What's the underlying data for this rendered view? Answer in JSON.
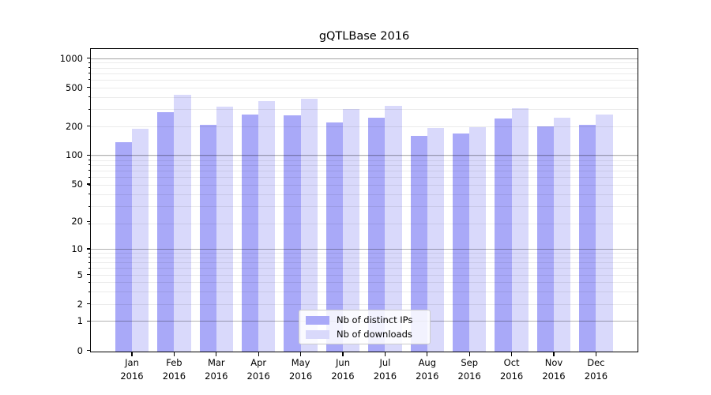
{
  "chart_data": {
    "type": "bar",
    "title": "gQTLBase 2016",
    "categories": [
      "Jan",
      "Feb",
      "Mar",
      "Apr",
      "May",
      "Jun",
      "Jul",
      "Aug",
      "Sep",
      "Oct",
      "Nov",
      "Dec"
    ],
    "x_tick_year": "2016",
    "series": [
      {
        "name": "Nb of distinct IPs",
        "color": "#a9a9f8",
        "values": [
          137,
          277,
          205,
          263,
          258,
          218,
          243,
          158,
          168,
          240,
          199,
          206
        ]
      },
      {
        "name": "Nb of downloads",
        "color": "#d9d9fb",
        "values": [
          188,
          420,
          315,
          362,
          380,
          300,
          320,
          190,
          196,
          307,
          244,
          264
        ]
      }
    ],
    "yscale": "log10(value+1)",
    "y_ticks": [
      0,
      1,
      2,
      5,
      10,
      20,
      50,
      100,
      200,
      500,
      1000
    ],
    "ylim": [
      0,
      1240
    ],
    "xlabel": "",
    "ylabel": "",
    "grid": true,
    "legend_position": "bottom-center"
  },
  "colors": {
    "bar_distinct_ips": "#a9a9f8",
    "bar_downloads": "#d9d9fb",
    "grid_major": "#b2b2b2",
    "grid_minor": "#ebebeb",
    "axis": "#000000",
    "background": "#ffffff"
  }
}
